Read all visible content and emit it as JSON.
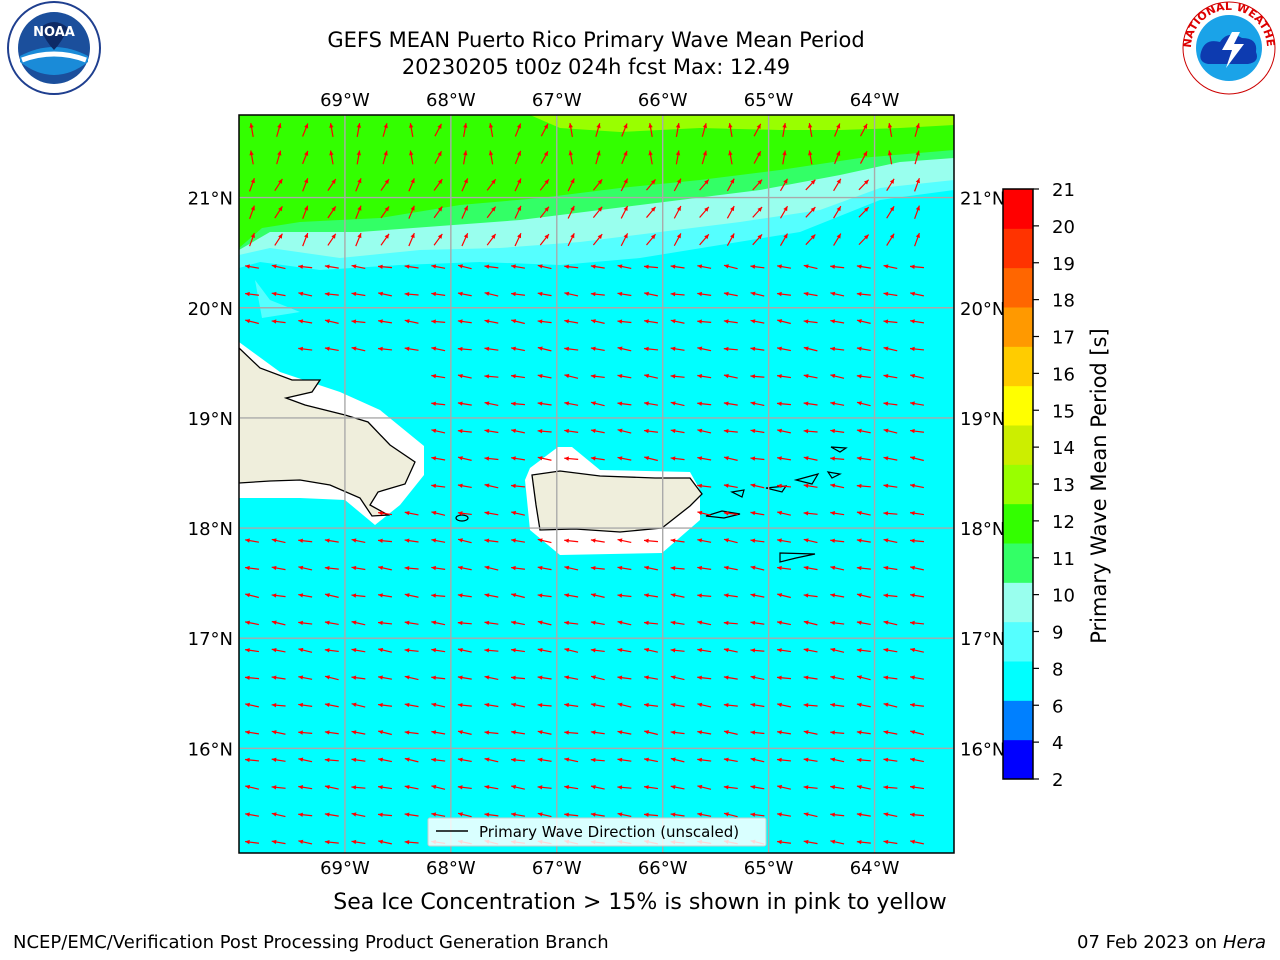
{
  "title_line1": "GEFS MEAN Puerto Rico Primary Wave Mean Period",
  "title_line2": "20230205 t00z 024h fcst   Max: 12.49",
  "map": {
    "lon_labels": [
      "69°W",
      "68°W",
      "67°W",
      "66°W",
      "65°W",
      "64°W"
    ],
    "lat_labels": [
      "21°N",
      "20°N",
      "19°N",
      "18°N",
      "17°N",
      "16°N"
    ],
    "lon_range": [
      -70.0,
      -63.25
    ],
    "lat_range": [
      15.05,
      21.75
    ],
    "legend_text": "Primary Wave Direction (unscaled)",
    "arrow_color": "#ff0000",
    "land_color": "#efeedc"
  },
  "colorbar": {
    "label": "Primary Wave Mean Period [s]",
    "ticks": [
      "21",
      "20",
      "19",
      "18",
      "17",
      "16",
      "15",
      "14",
      "13",
      "12",
      "11",
      "10",
      "9",
      "8",
      "6",
      "4",
      "2"
    ],
    "colors": [
      "#0000ff",
      "#0080ff",
      "#00ffff",
      "#55ffff",
      "#99ffee",
      "#33ff66",
      "#33ff00",
      "#99ff00",
      "#ccee00",
      "#ffff00",
      "#ffcc00",
      "#ff9900",
      "#ff6600",
      "#ff3300",
      "#ff0000"
    ]
  },
  "note": "Sea Ice Concentration > 15% is shown in pink to yellow",
  "footer_left": "NCEP/EMC/Verification Post Processing Product Generation Branch",
  "footer_date": "07 Feb 2023 on",
  "footer_host": "Hera",
  "logos": {
    "noaa_text": "NOAA",
    "nws_text": "NATIONAL WEATHER SERVICE"
  }
}
